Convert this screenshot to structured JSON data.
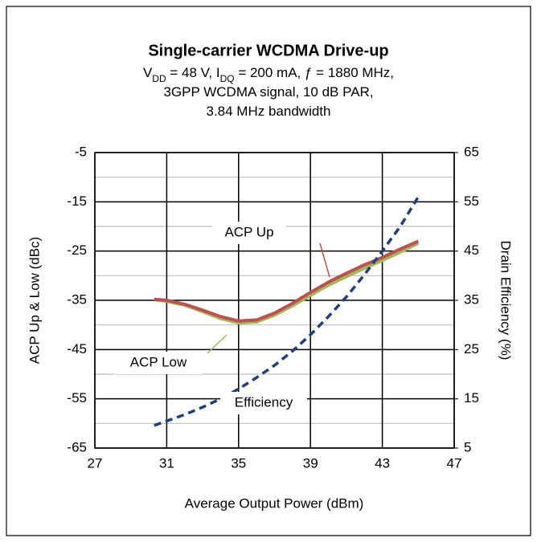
{
  "chart_data": {
    "type": "line",
    "title": "Single-carrier WCDMA Drive-up",
    "subtitle": [
      [
        {
          "text": "V"
        },
        {
          "text": "DD",
          "sub": true
        },
        {
          "text": " = 48 V, I"
        },
        {
          "text": "DQ",
          "sub": true
        },
        {
          "text": " = 200 mA, ƒ = 1880 MHz,"
        }
      ],
      [
        {
          "text": "3GPP WCDMA signal, 10 dB PAR,"
        }
      ],
      [
        {
          "text": "3.84 MHz bandwidth"
        }
      ]
    ],
    "x_label": "Average Output Power (dBm)",
    "y_label": "ACP Up & Low (dBc)",
    "y2_label": "Drain Efficiency (%)",
    "x": [
      30.3,
      31,
      32,
      33,
      34,
      35,
      36,
      37,
      38,
      39,
      40,
      41,
      42,
      43,
      44,
      45
    ],
    "series": [
      {
        "name": "ACP Up",
        "color": "#c0504d",
        "values": [
          -34.8,
          -35,
          -35.8,
          -37,
          -38.3,
          -39.2,
          -39,
          -37.6,
          -35.6,
          -33.4,
          -31.3,
          -29.5,
          -27.8,
          -26.3,
          -24.6,
          -23
        ]
      },
      {
        "name": "ACP Low",
        "color": "#9bbb59",
        "values": [
          -34.9,
          -35.2,
          -36,
          -37.3,
          -38.7,
          -39.6,
          -39.4,
          -38,
          -36.1,
          -34,
          -31.9,
          -30.2,
          -28.5,
          -26.9,
          -25.2,
          -23.4
        ]
      },
      {
        "name": "Efficiency",
        "color": "#1f3f7f",
        "dashed": true,
        "axis": "y2",
        "values": [
          9.6,
          10.5,
          11.8,
          13.3,
          15,
          17,
          19.3,
          21.8,
          24.7,
          28,
          31.7,
          35.7,
          40.2,
          45,
          50,
          56
        ]
      }
    ],
    "xlim": [
      27,
      47
    ],
    "xticks": [
      27,
      31,
      35,
      39,
      43,
      47
    ],
    "ylim": [
      -65,
      -5
    ],
    "yticks": [
      -65,
      -55,
      -45,
      -35,
      -25,
      -15,
      -5
    ],
    "yminorticks": [
      -60,
      -50,
      -40,
      -30,
      -20,
      -10
    ],
    "y2lim": [
      5,
      65
    ],
    "y2ticks": [
      5,
      15,
      25,
      35,
      45,
      55,
      65
    ],
    "grid": true
  }
}
